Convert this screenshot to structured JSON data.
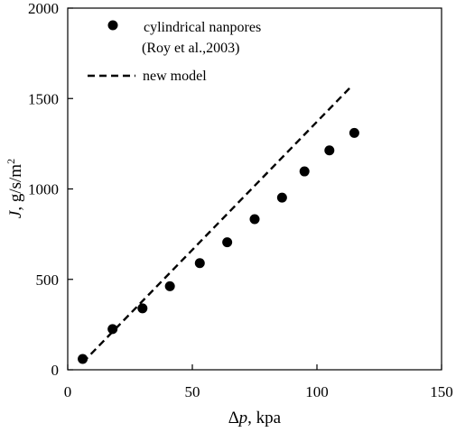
{
  "chart_data": {
    "type": "scatter",
    "title": "",
    "xlabel": {
      "symbol": "∆p",
      "rest": ", kpa"
    },
    "ylabel": {
      "symbol": "J",
      "rest": ", g/s/m",
      "superscript": "2"
    },
    "xlim": [
      0,
      150
    ],
    "ylim": [
      0,
      2000
    ],
    "xticks": [
      0,
      50,
      100,
      150
    ],
    "yticks": [
      0,
      500,
      1000,
      1500,
      2000
    ],
    "grid": false,
    "legend_position": "top-left",
    "series": [
      {
        "name": "cylindrical nanpores",
        "name_line2": "(Roy et al.,2003)",
        "kind": "scatter",
        "color": "#000000",
        "points": [
          [
            6,
            60
          ],
          [
            18,
            225
          ],
          [
            30,
            340
          ],
          [
            41,
            462
          ],
          [
            53,
            590
          ],
          [
            64,
            705
          ],
          [
            75,
            833
          ],
          [
            86,
            952
          ],
          [
            95,
            1097
          ],
          [
            105,
            1213
          ],
          [
            115,
            1310
          ]
        ]
      },
      {
        "name": "new model",
        "kind": "line",
        "dash": true,
        "color": "#000000",
        "points": [
          [
            6,
            40
          ],
          [
            114,
            1570
          ]
        ]
      }
    ]
  }
}
